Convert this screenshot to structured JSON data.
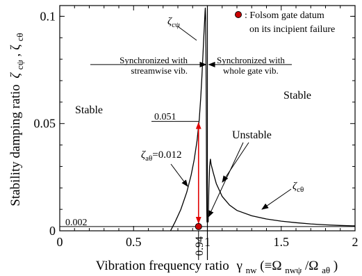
{
  "chart_data": {
    "type": "line",
    "xlabel_main": "Vibration frequency ratio",
    "xlabel_gamma": "γ",
    "xlabel_gamma_sub": "nw",
    "xlabel_paren_open": "(≡Ω",
    "xlabel_omega_sub1": "nwψ",
    "xlabel_slash": "/Ω",
    "xlabel_omega_sub2": "aθ",
    "xlabel_paren_close": ")",
    "ylabel_main": "Stability damping ratio",
    "ylabel_zeta": "ζ",
    "ylabel_sub1": "cψ",
    "ylabel_comma": ", ζ",
    "ylabel_sub2": "cθ",
    "xlim": [
      0,
      2
    ],
    "ylim": [
      0,
      0.105
    ],
    "x_ticks": [
      0,
      0.5,
      1,
      1.5,
      2
    ],
    "x_tick_labels": [
      "0",
      "0.5",
      "1",
      "1.5",
      "2"
    ],
    "y_ticks": [
      0,
      0.05,
      0.1
    ],
    "y_tick_labels": [
      "0",
      "0.05",
      "0.1"
    ],
    "extra_x_tick_label": "0.94",
    "extra_x_tick_value": 0.94,
    "grid": false,
    "series": [
      {
        "name": "ζcψ",
        "points": [
          [
            0.75,
            0
          ],
          [
            0.78,
            0.004
          ],
          [
            0.82,
            0.01
          ],
          [
            0.86,
            0.018
          ],
          [
            0.89,
            0.026
          ],
          [
            0.91,
            0.033
          ],
          [
            0.93,
            0.042
          ],
          [
            0.945,
            0.052
          ],
          [
            0.955,
            0.062
          ],
          [
            0.963,
            0.072
          ],
          [
            0.97,
            0.082
          ],
          [
            0.976,
            0.091
          ],
          [
            0.981,
            0.098
          ],
          [
            0.984,
            0.102
          ],
          [
            0.986,
            0.104
          ],
          [
            0.988,
            0.1
          ],
          [
            0.99,
            0.085
          ],
          [
            0.992,
            0.06
          ],
          [
            0.994,
            0.03
          ],
          [
            0.996,
            0.01
          ],
          [
            0.997,
            0.004
          ]
        ]
      },
      {
        "name": "ζcθ",
        "points": [
          [
            1.005,
            0.004
          ],
          [
            1.01,
            0.02
          ],
          [
            1.015,
            0.03
          ],
          [
            1.02,
            0.0335
          ],
          [
            1.025,
            0.031
          ],
          [
            1.04,
            0.027
          ],
          [
            1.06,
            0.022
          ],
          [
            1.1,
            0.016
          ],
          [
            1.15,
            0.012
          ],
          [
            1.2,
            0.0095
          ],
          [
            1.3,
            0.007
          ],
          [
            1.4,
            0.0055
          ],
          [
            1.5,
            0.0045
          ],
          [
            1.6,
            0.0038
          ],
          [
            1.7,
            0.0032
          ],
          [
            1.8,
            0.0028
          ],
          [
            1.9,
            0.0025
          ],
          [
            2.0,
            0.0023
          ]
        ]
      }
    ],
    "baseline_value": 0.002,
    "baseline_label": "0.002",
    "level_value": 0.051,
    "level_label": "0.051",
    "datum_point": {
      "x": 0.94,
      "y": 0.002
    },
    "legend_text_line1": ": Folsom gate datum",
    "legend_text_line2": "on its incipient failure",
    "label_zeta_cpsi": "ζ",
    "label_zeta_cpsi_sub": "cψ",
    "label_zeta_ctheta": "ζ",
    "label_zeta_ctheta_sub": "cθ",
    "label_zeta_atheta": "ζ",
    "label_zeta_atheta_sub": "aθ",
    "label_zeta_atheta_value": "=0.012",
    "sync_left_line1": "Synchronized with",
    "sync_left_line2": "streamwise vib.",
    "sync_right_line1": "Synchronized with",
    "sync_right_line2": "whole gate vib.",
    "sync_level": 0.0775,
    "stable_left": "Stable",
    "stable_right": "Stable",
    "unstable": "Unstable",
    "colors": {
      "datum": "#cc0000",
      "arrow": "#e00000",
      "line": "#000000"
    }
  }
}
